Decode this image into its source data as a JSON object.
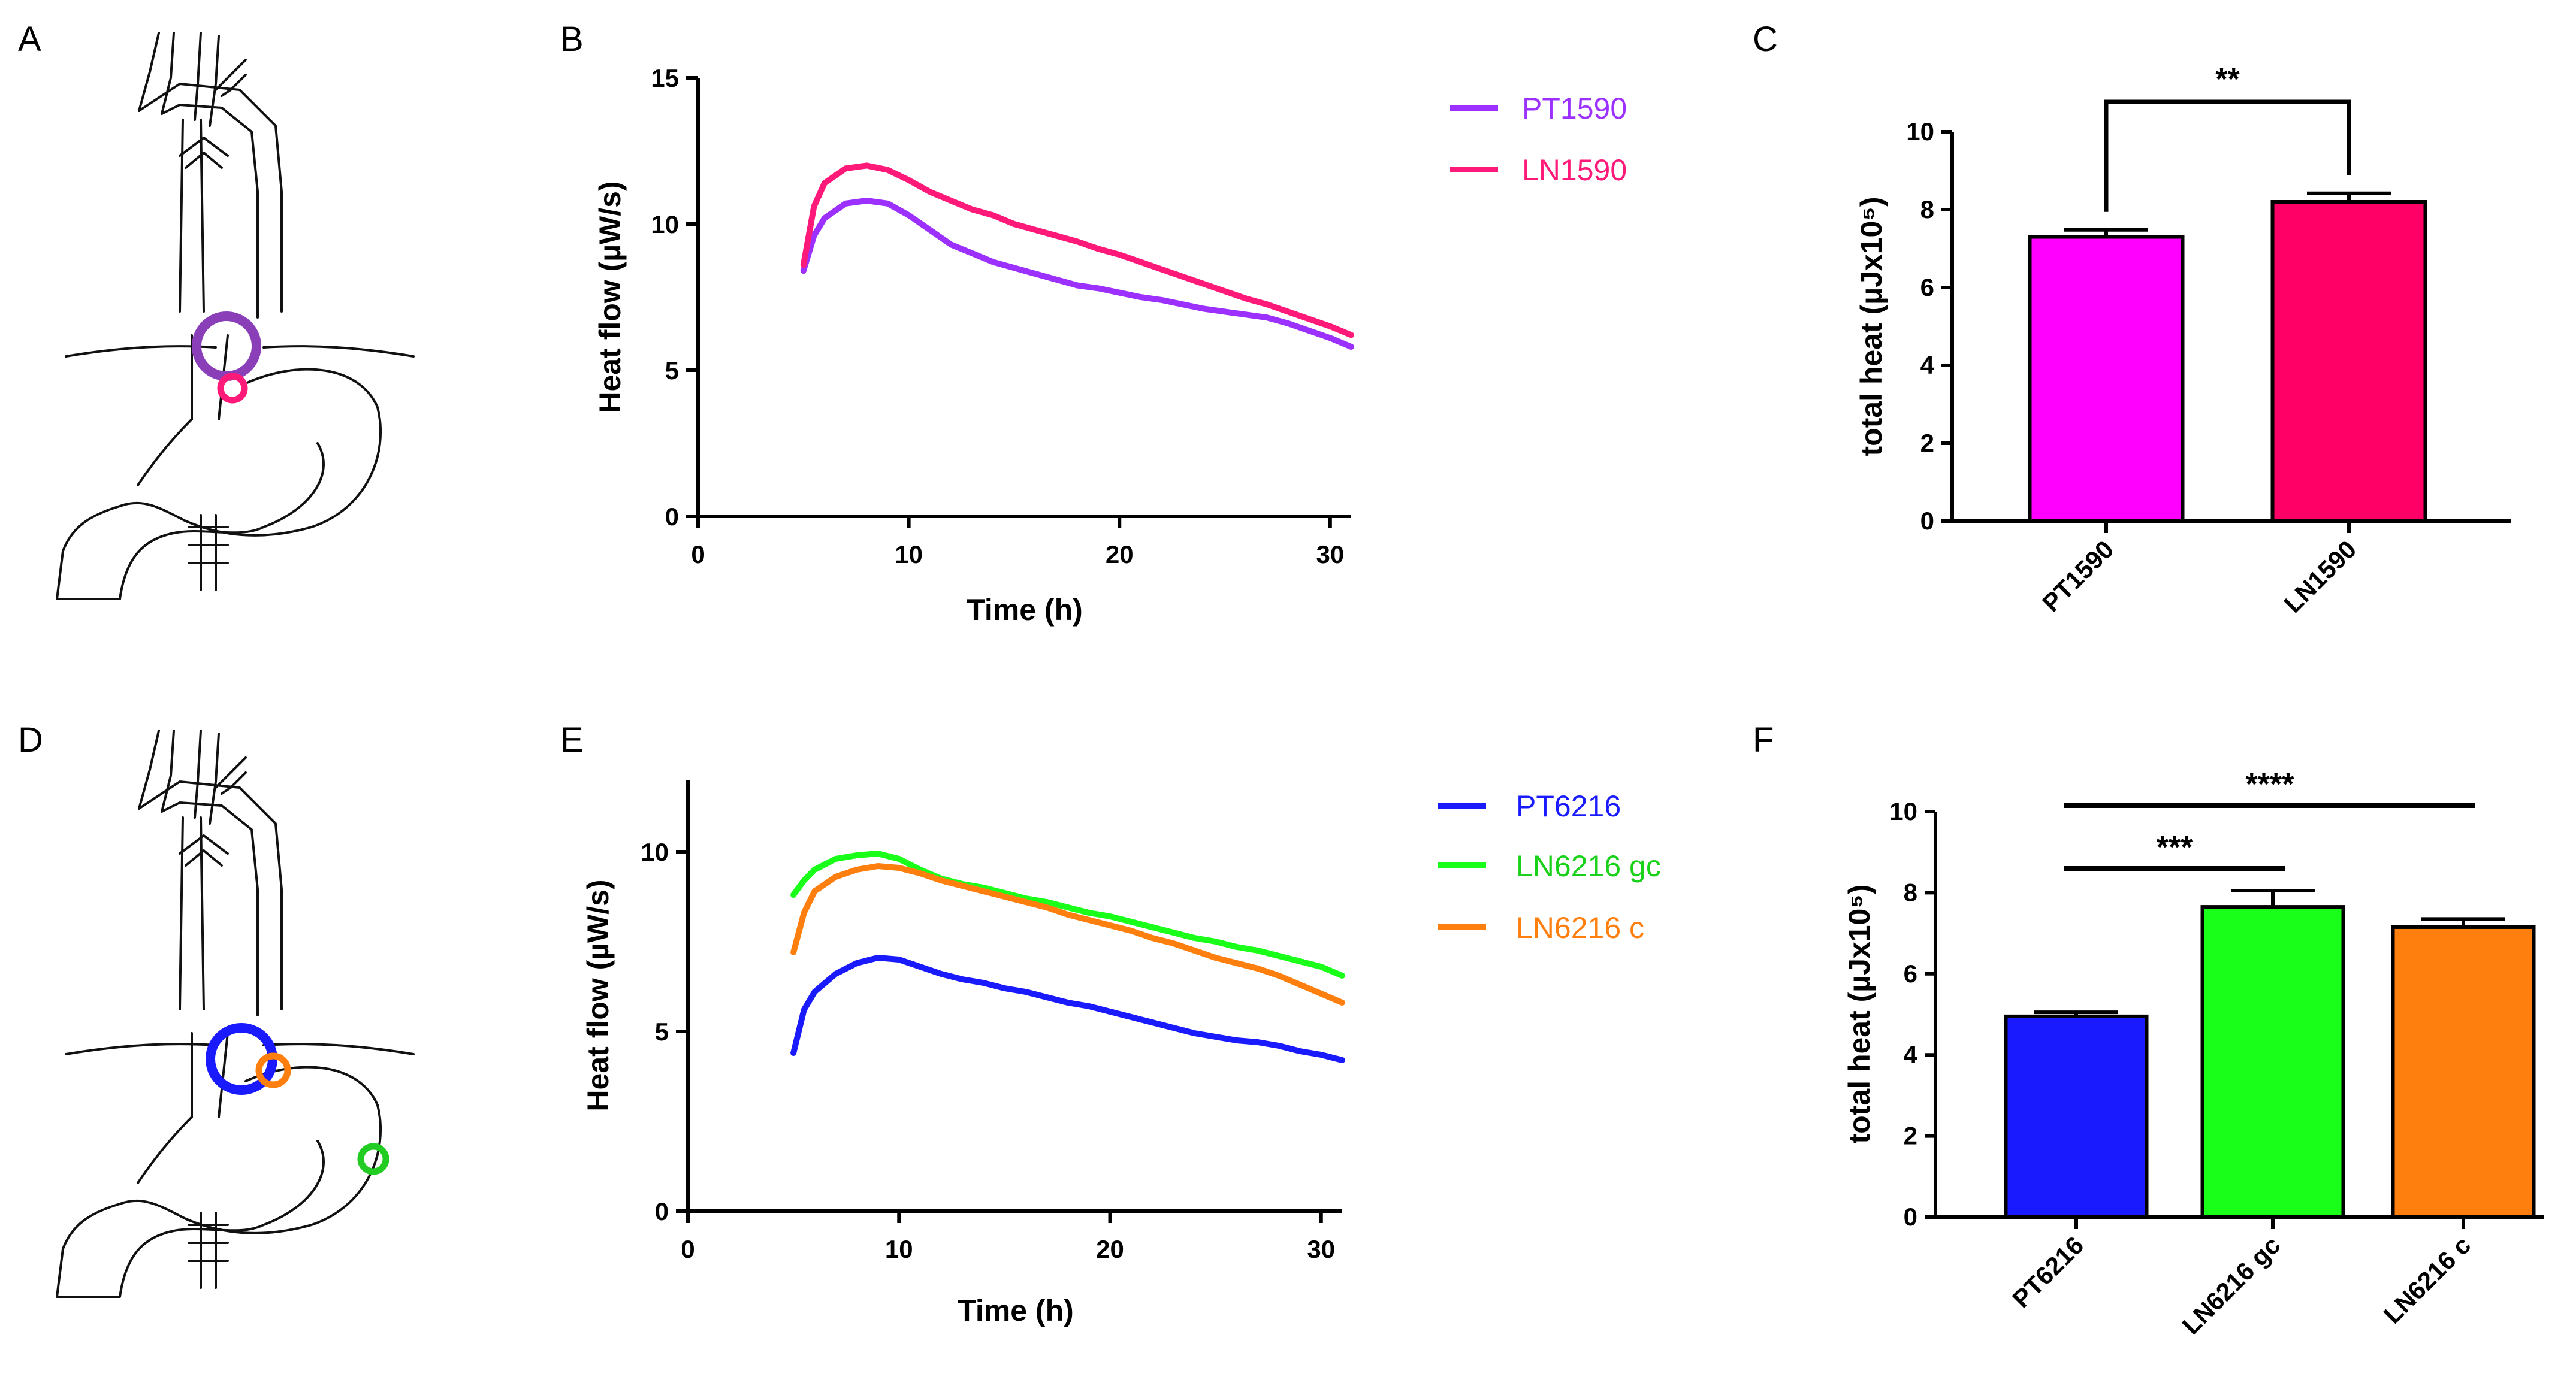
{
  "panels": {
    "A": "A",
    "B": "B",
    "C": "C",
    "D": "D",
    "E": "E",
    "F": "F"
  },
  "colors": {
    "PT1590": "#9b30ff",
    "LN1590": "#ff1a7a",
    "PT1590_bar": "#ff00ff",
    "LN1590_bar": "#ff0066",
    "PT6216": "#1a1aff",
    "LN6216gc": "#1aff1a",
    "LN6216c": "#ff7f0e",
    "anatomy_upper_ring": "#8a3fb8",
    "anatomy_lower_ring": "#ff1a7a"
  },
  "chart_data": [
    {
      "id": "B",
      "type": "line",
      "xlabel": "Time (h)",
      "ylabel": "Heat flow (µW/s)",
      "xlim": [
        0,
        31
      ],
      "ylim": [
        0,
        15
      ],
      "xticks": [
        0,
        10,
        20,
        30
      ],
      "yticks": [
        0,
        5,
        10,
        15
      ],
      "legend": "top-right",
      "series": [
        {
          "name": "PT1590",
          "color": "#9b30ff",
          "x": [
            5,
            5.5,
            6,
            7,
            8,
            9,
            10,
            11,
            12,
            13,
            14,
            15,
            16,
            17,
            18,
            19,
            20,
            21,
            22,
            23,
            24,
            25,
            26,
            27,
            28,
            29,
            30,
            31
          ],
          "y": [
            8.4,
            9.6,
            10.2,
            10.7,
            10.8,
            10.7,
            10.3,
            9.8,
            9.3,
            9.0,
            8.7,
            8.5,
            8.3,
            8.1,
            7.9,
            7.8,
            7.65,
            7.5,
            7.4,
            7.25,
            7.1,
            7.0,
            6.9,
            6.8,
            6.6,
            6.35,
            6.1,
            5.8
          ]
        },
        {
          "name": "LN1590",
          "color": "#ff1a7a",
          "x": [
            5,
            5.5,
            6,
            7,
            8,
            9,
            10,
            11,
            12,
            13,
            14,
            15,
            16,
            17,
            18,
            19,
            20,
            21,
            22,
            23,
            24,
            25,
            26,
            27,
            28,
            29,
            30,
            31
          ],
          "y": [
            8.6,
            10.6,
            11.4,
            11.9,
            12.0,
            11.85,
            11.5,
            11.1,
            10.8,
            10.5,
            10.3,
            10.0,
            9.8,
            9.6,
            9.4,
            9.15,
            8.95,
            8.7,
            8.45,
            8.2,
            7.95,
            7.7,
            7.45,
            7.25,
            7.0,
            6.75,
            6.5,
            6.2
          ]
        }
      ]
    },
    {
      "id": "C",
      "type": "bar",
      "ylabel": "total heat (µJx10⁵)",
      "ylim": [
        0,
        10
      ],
      "yticks": [
        0,
        2,
        4,
        6,
        8,
        10
      ],
      "categories": [
        "PT1590",
        "LN1590"
      ],
      "values": [
        7.3,
        8.2
      ],
      "errors": [
        0.18,
        0.22
      ],
      "bar_colors": [
        "#ff00ff",
        "#ff0066"
      ],
      "significance": [
        {
          "from": 0,
          "to": 1,
          "label": "**"
        }
      ]
    },
    {
      "id": "E",
      "type": "line",
      "xlabel": "Time (h)",
      "ylabel": "Heat flow (µW/s)",
      "xlim": [
        0,
        31
      ],
      "ylim": [
        0,
        12
      ],
      "xticks": [
        0,
        10,
        20,
        30
      ],
      "yticks": [
        0,
        5,
        10
      ],
      "legend": "top-right",
      "series": [
        {
          "name": "PT6216",
          "color": "#1a1aff",
          "x": [
            5,
            5.5,
            6,
            7,
            8,
            9,
            10,
            11,
            12,
            13,
            14,
            15,
            16,
            17,
            18,
            19,
            20,
            21,
            22,
            23,
            24,
            25,
            26,
            27,
            28,
            29,
            30,
            31
          ],
          "y": [
            4.4,
            5.6,
            6.1,
            6.6,
            6.9,
            7.05,
            7.0,
            6.8,
            6.6,
            6.45,
            6.35,
            6.2,
            6.1,
            5.95,
            5.8,
            5.7,
            5.55,
            5.4,
            5.25,
            5.1,
            4.95,
            4.85,
            4.75,
            4.7,
            4.6,
            4.45,
            4.35,
            4.2
          ]
        },
        {
          "name": "LN6216 gc",
          "color": "#1aff1a",
          "x": [
            5,
            5.5,
            6,
            7,
            8,
            9,
            10,
            11,
            12,
            13,
            14,
            15,
            16,
            17,
            18,
            19,
            20,
            21,
            22,
            23,
            24,
            25,
            26,
            27,
            28,
            29,
            30,
            31
          ],
          "y": [
            8.8,
            9.2,
            9.5,
            9.8,
            9.9,
            9.95,
            9.8,
            9.5,
            9.25,
            9.1,
            9.0,
            8.85,
            8.7,
            8.6,
            8.45,
            8.3,
            8.2,
            8.05,
            7.9,
            7.75,
            7.6,
            7.5,
            7.35,
            7.25,
            7.1,
            6.95,
            6.8,
            6.55
          ]
        },
        {
          "name": "LN6216 c",
          "color": "#ff7f0e",
          "x": [
            5,
            5.5,
            6,
            7,
            8,
            9,
            10,
            11,
            12,
            13,
            14,
            15,
            16,
            17,
            18,
            19,
            20,
            21,
            22,
            23,
            24,
            25,
            26,
            27,
            28,
            29,
            30,
            31
          ],
          "y": [
            7.2,
            8.3,
            8.9,
            9.3,
            9.5,
            9.6,
            9.55,
            9.4,
            9.2,
            9.05,
            8.9,
            8.75,
            8.6,
            8.45,
            8.25,
            8.1,
            7.95,
            7.8,
            7.6,
            7.45,
            7.25,
            7.05,
            6.9,
            6.75,
            6.55,
            6.3,
            6.05,
            5.8
          ]
        }
      ]
    },
    {
      "id": "F",
      "type": "bar",
      "ylabel": "total heat (µJx10⁵)",
      "ylim": [
        0,
        10
      ],
      "yticks": [
        0,
        2,
        4,
        6,
        8,
        10
      ],
      "categories": [
        "PT6216",
        "LN6216 gc",
        "LN6216 c"
      ],
      "values": [
        4.95,
        7.65,
        7.15
      ],
      "errors": [
        0.1,
        0.4,
        0.2
      ],
      "bar_colors": [
        "#1a1aff",
        "#1aff1a",
        "#ff7f0e"
      ],
      "significance": [
        {
          "from": 0,
          "to": 1,
          "label": "***"
        },
        {
          "from": 0,
          "to": 2,
          "label": "****"
        }
      ]
    }
  ]
}
